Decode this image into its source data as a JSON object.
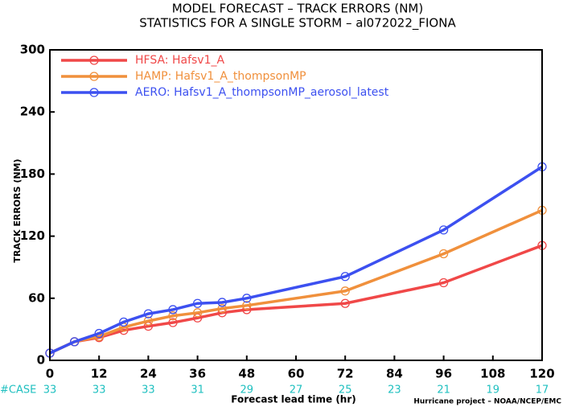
{
  "chart_data": {
    "type": "line",
    "title": "MODEL FORECAST – TRACK ERRORS (NM)",
    "subtitle": "STATISTICS FOR A SINGLE STORM – al072022_FIONA",
    "x_label": "Forecast lead time (hr)",
    "y_label": "TRACK ERRORS (NM)",
    "footer": "Hurricane project – NOAA/NCEP/EMC",
    "x": [
      0,
      6,
      12,
      18,
      24,
      30,
      36,
      42,
      48,
      72,
      96,
      120
    ],
    "series": [
      {
        "name": "HFSA: Hafsv1_A",
        "color": "#f04848",
        "values": [
          7,
          18,
          22,
          29,
          33,
          36.5,
          41,
          46,
          49,
          55,
          75,
          111
        ]
      },
      {
        "name": "HAMP: Hafsv1_A_thompsonMP",
        "color": "#f0903c",
        "values": [
          7,
          18,
          23,
          32,
          38,
          43,
          46,
          50,
          53,
          67,
          103,
          145
        ]
      },
      {
        "name": "AERO: Hafsv1_A_thompsonMP_aerosol_latest",
        "color": "#3c50f0",
        "values": [
          7,
          18,
          26,
          37,
          45,
          49,
          55,
          56,
          60,
          81,
          126,
          187
        ]
      }
    ],
    "xlim": [
      0,
      120
    ],
    "xticks": [
      0,
      12,
      24,
      36,
      48,
      60,
      72,
      84,
      96,
      108,
      120
    ],
    "ylim": [
      0,
      300
    ],
    "yticks": [
      0,
      60,
      120,
      180,
      240,
      300
    ],
    "case_label": "#CASE",
    "case_counts": [
      33,
      33,
      33,
      31,
      29,
      27,
      25,
      23,
      21,
      19,
      17
    ],
    "case_color": "#20c0c0",
    "legend": "upper left"
  }
}
